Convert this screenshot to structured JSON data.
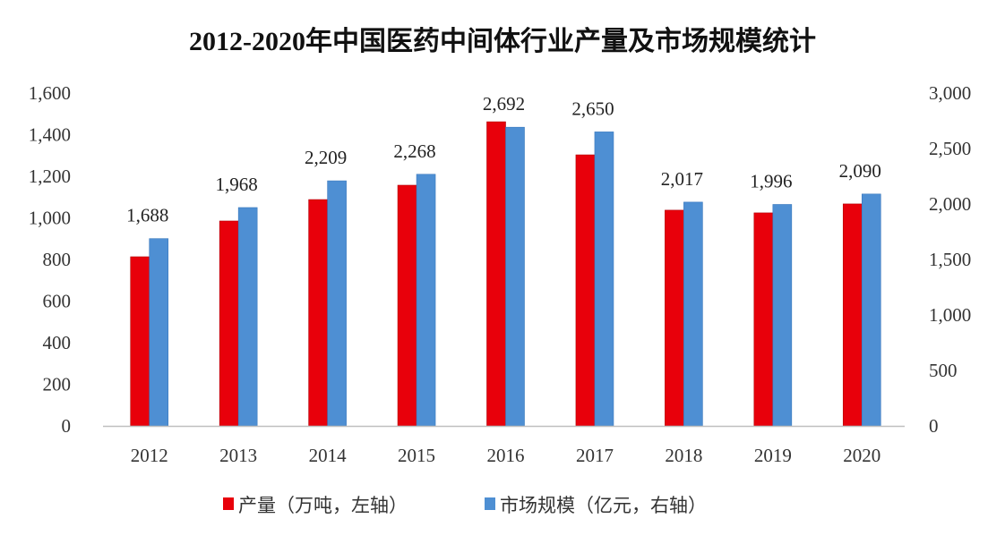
{
  "chart_data": {
    "type": "bar",
    "title": "2012-2020年中国医药中间体行业产量及市场规模统计",
    "xlabel": "",
    "categories": [
      "2012",
      "2013",
      "2014",
      "2015",
      "2016",
      "2017",
      "2018",
      "2019",
      "2020"
    ],
    "series": [
      {
        "name": "产量（万吨，左轴）",
        "axis": "left",
        "color": "#e8000b",
        "values": [
          813,
          985,
          1088,
          1157,
          1462,
          1303,
          1037,
          1024,
          1067
        ],
        "data_labels": false
      },
      {
        "name": "市场规模（亿元，右轴）",
        "axis": "right",
        "color": "#4e8fd3",
        "values": [
          1688,
          1968,
          2209,
          2268,
          2692,
          2650,
          2017,
          1996,
          2090
        ],
        "data_labels": true
      }
    ],
    "left_axis": {
      "ylim": [
        0,
        1600
      ],
      "ticks": [
        0,
        200,
        400,
        600,
        800,
        1000,
        1200,
        1400,
        1600
      ],
      "tick_labels": [
        "0",
        "200",
        "400",
        "600",
        "800",
        "1,000",
        "1,200",
        "1,400",
        "1,600"
      ]
    },
    "right_axis": {
      "ylim": [
        0,
        3000
      ],
      "ticks": [
        0,
        500,
        1000,
        1500,
        2000,
        2500,
        3000
      ],
      "tick_labels": [
        "0",
        "500",
        "1,000",
        "1,500",
        "2,000",
        "2,500",
        "3,000"
      ]
    },
    "data_label_texts": [
      "1,688",
      "1,968",
      "2,209",
      "2,268",
      "2,692",
      "2,650",
      "2,017",
      "1,996",
      "2,090"
    ],
    "grid": false,
    "legend": "bottom-center"
  }
}
